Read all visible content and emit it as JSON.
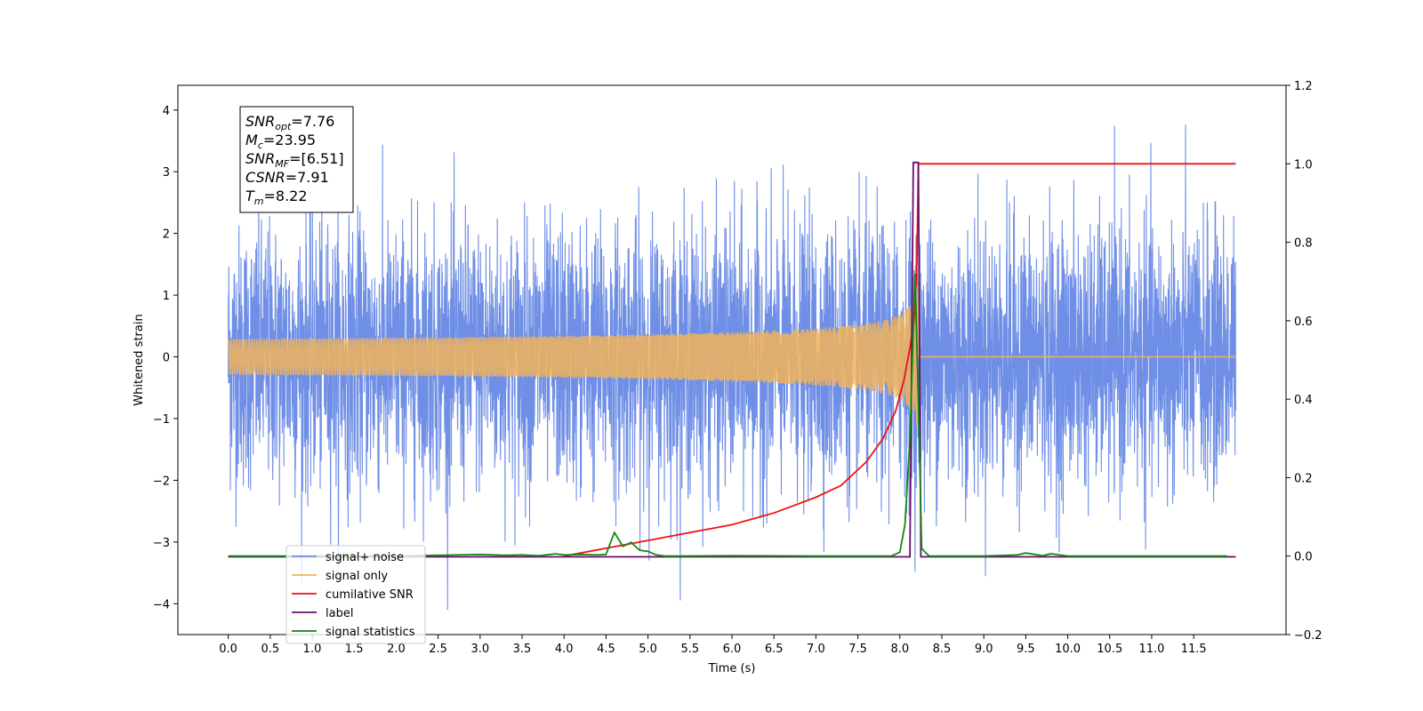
{
  "chart_data": {
    "type": "line",
    "title": "",
    "xlabel": "Time (s)",
    "ylabel": "Whitened strain",
    "xlim": [
      -0.6,
      12.6
    ],
    "ylim": [
      -4.5,
      4.4
    ],
    "y2lim": [
      -0.2,
      1.2
    ],
    "x_ticks": [
      "0.0",
      "0.5",
      "1.0",
      "1.5",
      "2.0",
      "2.5",
      "3.0",
      "3.5",
      "4.0",
      "4.5",
      "5.0",
      "5.5",
      "6.0",
      "6.5",
      "7.0",
      "7.5",
      "8.0",
      "8.5",
      "9.0",
      "9.5",
      "10.0",
      "10.5",
      "11.0",
      "11.5"
    ],
    "y_ticks": [
      "−4",
      "−3",
      "−2",
      "−1",
      "0",
      "1",
      "2",
      "3",
      "4"
    ],
    "y2_ticks": [
      "−0.2",
      "0.0",
      "0.2",
      "0.4",
      "0.6",
      "0.8",
      "1.0",
      "1.2"
    ],
    "grid": false,
    "legend_position": "lower-left",
    "annotation": {
      "lines": [
        {
          "base": "SNR",
          "sub": "opt",
          "value": "=7.76"
        },
        {
          "base": "M",
          "sub": "c",
          "value": "=23.95"
        },
        {
          "base": "SNR",
          "sub": "MF",
          "value": "=[6.51]"
        },
        {
          "base": "CSNR",
          "sub": "",
          "value": "=7.91"
        },
        {
          "base": "T",
          "sub": "m",
          "value": "=8.22"
        }
      ]
    },
    "merger_time": 8.22,
    "series": [
      {
        "name": "signal+ noise",
        "color": "#6f8fe6",
        "axis": "left",
        "kind": "noise",
        "x_range": [
          0.0,
          12.0
        ],
        "approx_range": [
          -4.1,
          4.0
        ]
      },
      {
        "name": "signal only",
        "color": "#f2b45a",
        "axis": "left",
        "kind": "chirp",
        "x_range": [
          0.0,
          12.0
        ],
        "peak_amplitude": 1.3
      },
      {
        "name": "cumilative SNR",
        "color": "#ee1111",
        "axis": "right",
        "x": [
          4.0,
          4.5,
          5.0,
          5.5,
          6.0,
          6.5,
          7.0,
          7.3,
          7.6,
          7.8,
          7.95,
          8.05,
          8.12,
          8.17,
          8.2,
          8.22,
          12.0
        ],
        "values": [
          0.0,
          0.02,
          0.04,
          0.06,
          0.08,
          0.11,
          0.15,
          0.18,
          0.24,
          0.3,
          0.37,
          0.45,
          0.53,
          0.6,
          0.72,
          1.0,
          1.0
        ]
      },
      {
        "name": "label",
        "color": "#6a0d6a",
        "axis": "left",
        "x": [
          0.0,
          8.12,
          8.16,
          8.19,
          8.22,
          8.25,
          12.0
        ],
        "values": [
          -3.24,
          -3.24,
          3.15,
          3.15,
          3.15,
          -3.24,
          -3.24
        ]
      },
      {
        "name": "signal statistics",
        "color": "#118811",
        "axis": "right",
        "x": [
          0.0,
          2.0,
          2.5,
          3.0,
          3.3,
          3.5,
          3.7,
          3.9,
          4.0,
          4.2,
          4.4,
          4.5,
          4.6,
          4.7,
          4.8,
          4.9,
          5.0,
          5.1,
          5.2,
          5.4,
          6.0,
          7.0,
          7.5,
          7.9,
          8.0,
          8.06,
          8.12,
          8.18,
          8.22,
          8.26,
          8.3,
          8.35,
          9.0,
          9.4,
          9.5,
          9.7,
          9.8,
          9.9,
          10.0,
          11.0,
          11.9
        ],
        "values": [
          0.0,
          0.0,
          0.002,
          0.004,
          0.002,
          0.003,
          0.001,
          0.006,
          0.003,
          0.004,
          0.003,
          0.004,
          0.06,
          0.025,
          0.035,
          0.015,
          0.012,
          0.003,
          0.0,
          0.0,
          0.001,
          0.0,
          0.0,
          0.0,
          0.01,
          0.08,
          0.3,
          0.72,
          0.4,
          0.02,
          0.01,
          0.0,
          0.0,
          0.003,
          0.008,
          0.001,
          0.006,
          0.003,
          0.0,
          0.0,
          0.0
        ]
      }
    ],
    "legend_entries": [
      {
        "label": "signal+ noise",
        "color": "#6f8fe6"
      },
      {
        "label": "signal only",
        "color": "#f2b45a"
      },
      {
        "label": "cumilative SNR",
        "color": "#ee1111"
      },
      {
        "label": "label",
        "color": "#6a0d6a"
      },
      {
        "label": "signal statistics",
        "color": "#118811"
      }
    ]
  }
}
